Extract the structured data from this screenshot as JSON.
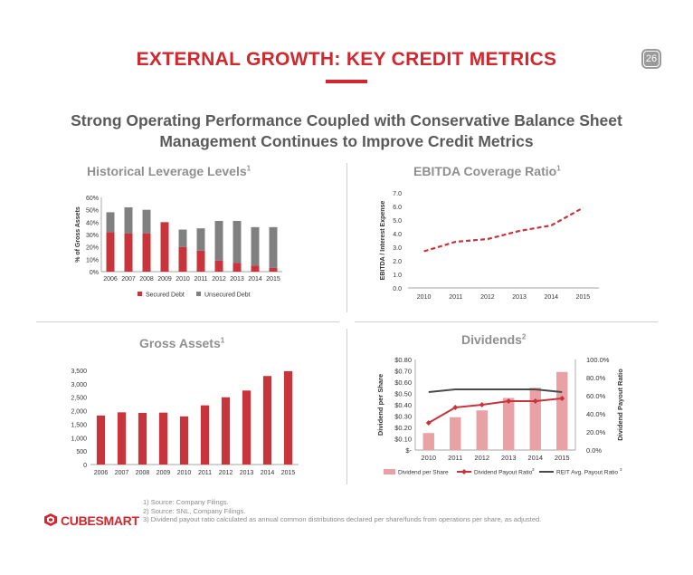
{
  "page": {
    "title": "EXTERNAL GROWTH: KEY CREDIT METRICS",
    "page_number": "26",
    "subtitle_line1": "Strong Operating Performance Coupled with Conservative Balance Sheet",
    "subtitle_line2": "Management Continues to Improve Credit Metrics",
    "accent_color": "#d0282e"
  },
  "sections": {
    "leverage": {
      "title": "Historical Leverage Levels",
      "sup": "1"
    },
    "ebitda": {
      "title": "EBITDA Coverage Ratio",
      "sup": "1"
    },
    "gross": {
      "title": "Gross Assets",
      "sup": "1"
    },
    "dividends": {
      "title": "Dividends",
      "sup": "2"
    }
  },
  "chart_data": [
    {
      "id": "leverage",
      "type": "bar",
      "stacked": true,
      "categories": [
        "2006",
        "2007",
        "2008",
        "2009",
        "2010",
        "2011",
        "2012",
        "2013",
        "2014",
        "2015"
      ],
      "series": [
        {
          "name": "Secured Debt",
          "color": "#c8343b",
          "values": [
            32,
            31,
            31,
            40,
            20,
            17,
            9,
            7,
            5,
            3
          ]
        },
        {
          "name": "Unsecured Debt",
          "color": "#808080",
          "values": [
            16,
            21,
            19,
            0,
            14,
            18,
            32,
            34,
            31,
            33
          ]
        }
      ],
      "ylabel": "% of Gross Assets",
      "ylim": [
        0,
        60
      ],
      "yticks": [
        "0%",
        "10%",
        "20%",
        "30%",
        "40%",
        "50%",
        "60%"
      ],
      "legend": "bottom"
    },
    {
      "id": "ebitda",
      "type": "line",
      "categories": [
        "2010",
        "2011",
        "2012",
        "2013",
        "2014",
        "2015"
      ],
      "values": [
        2.7,
        3.4,
        3.6,
        4.2,
        4.6,
        5.9
      ],
      "color": "#c8343b",
      "dashed": true,
      "ylabel": "EBITDA / Interest Expense",
      "ylim": [
        0,
        7
      ],
      "yticks": [
        "0.0",
        "1.0",
        "2.0",
        "3.0",
        "4.0",
        "5.0",
        "6.0",
        "7.0"
      ]
    },
    {
      "id": "gross",
      "type": "bar",
      "categories": [
        "2006",
        "2007",
        "2008",
        "2009",
        "2010",
        "2011",
        "2012",
        "2013",
        "2014",
        "2015"
      ],
      "values": [
        1820,
        1940,
        1920,
        1930,
        1790,
        2200,
        2500,
        2750,
        3290,
        3470
      ],
      "color": "#c8343b",
      "ylim": [
        0,
        3500
      ],
      "yticks": [
        "0",
        "500",
        "1,000",
        "1,500",
        "2,000",
        "2,500",
        "3,000",
        "3,500"
      ]
    },
    {
      "id": "dividends",
      "type": "bar+line",
      "categories": [
        "2010",
        "2011",
        "2012",
        "2013",
        "2014",
        "2015"
      ],
      "bars": {
        "name": "Dividend per Share",
        "color": "#e8a1a4",
        "values": [
          0.15,
          0.29,
          0.35,
          0.46,
          0.55,
          0.69
        ]
      },
      "series": [
        {
          "name": "Dividend Payout Ratio",
          "sup": "3",
          "color": "#c8343b",
          "values": [
            30,
            47,
            50,
            54,
            54,
            57
          ]
        },
        {
          "name": "REIT Avg. Payout Ratio",
          "sup": "3",
          "color": "#4a4a4a",
          "values": [
            64,
            67,
            67,
            67,
            67,
            64
          ]
        }
      ],
      "ylabel_left": "Dividend per Share",
      "ylabel_right": "Dividend Payout Ratio",
      "ylim_left": [
        0,
        0.8
      ],
      "ylim_right": [
        0,
        100
      ],
      "yticks_left": [
        "$-",
        "$0.10",
        "$0.20",
        "$0.30",
        "$0.40",
        "$0.50",
        "$0.60",
        "$0.70",
        "$0.80"
      ],
      "yticks_right": [
        "0.0%",
        "20.0%",
        "40.0%",
        "60.0%",
        "80.0%",
        "100.0%"
      ]
    }
  ],
  "footnotes": [
    "1) Source: Company Filings.",
    "2) Source: SNL, Company Filings.",
    "3) Dividend payout ratio calculated as annual common distributions declared per share/funds from operations per share, as adjusted."
  ],
  "logo": {
    "text": "CUBESMART",
    "icon": "cube-logo-icon"
  }
}
